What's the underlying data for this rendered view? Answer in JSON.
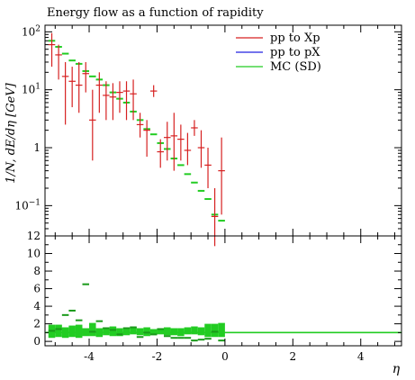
{
  "chart_data": {
    "type": "scatter",
    "title": "Energy flow as a function of rapidity",
    "xlabel": "η",
    "ylabel": "1/N, dE/dη [GeV]",
    "xlim": [
      -5.3,
      5.2
    ],
    "ylim": [
      0.03,
      130
    ],
    "yscale": "log",
    "y_ticks": [
      {
        "v": 100,
        "base": "10",
        "exp": "2"
      },
      {
        "v": 10,
        "base": "10",
        "exp": "1"
      },
      {
        "v": 1,
        "base": "1",
        "exp": ""
      },
      {
        "v": 0.1,
        "base": "10",
        "exp": "−1"
      }
    ],
    "x_ticks": [
      {
        "v": -4,
        "label": "-4"
      },
      {
        "v": -2,
        "label": "-2"
      },
      {
        "v": 0,
        "label": "0"
      },
      {
        "v": 2,
        "label": "2"
      },
      {
        "v": 4,
        "label": "4"
      }
    ],
    "legend_position": "top-right",
    "series": [
      {
        "name": "pp to Xp",
        "color": "#d62020",
        "marker": "errorbar",
        "x": [
          -5.1,
          -4.9,
          -4.7,
          -4.5,
          -4.3,
          -4.1,
          -3.9,
          -3.7,
          -3.5,
          -3.3,
          -3.1,
          -2.9,
          -2.7,
          -2.5,
          -2.3,
          -2.1,
          -1.9,
          -1.7,
          -1.5,
          -1.3,
          -1.1,
          -0.9,
          -0.7,
          -0.5,
          -0.3,
          -0.1
        ],
        "y": [
          60,
          40,
          17,
          14,
          12,
          19,
          3.0,
          12,
          8.0,
          7.5,
          9.0,
          9.5,
          8.5,
          2.5,
          2.0,
          9.5,
          0.85,
          1.5,
          1.6,
          1.4,
          0.9,
          2.2,
          1.0,
          0.5,
          0.065,
          0.4
        ],
        "ylow": [
          25,
          15,
          2.5,
          5,
          4,
          9,
          0.6,
          4,
          3,
          3,
          4,
          3,
          3,
          1.5,
          0.7,
          7.5,
          0.45,
          0.6,
          0.4,
          0.6,
          0.5,
          1.6,
          0.45,
          0.2,
          0.02,
          0.07
        ],
        "yhigh": [
          95,
          60,
          30,
          25,
          30,
          30,
          10,
          20,
          14,
          13,
          14,
          14,
          15,
          4,
          3,
          12,
          1.4,
          2.8,
          4.0,
          2.5,
          1.8,
          3.0,
          2.0,
          1.0,
          0.2,
          1.5
        ]
      },
      {
        "name": "pp to pX",
        "color": "#2020e0",
        "marker": "none",
        "x": [],
        "y": []
      },
      {
        "name": "MC (SD)",
        "color": "#22cc22",
        "marker": "hbar",
        "x": [
          -5.1,
          -4.9,
          -4.7,
          -4.5,
          -4.3,
          -4.1,
          -3.9,
          -3.7,
          -3.5,
          -3.3,
          -3.1,
          -2.9,
          -2.7,
          -2.5,
          -2.3,
          -2.1,
          -1.9,
          -1.7,
          -1.5,
          -1.3,
          -1.1,
          -0.9,
          -0.7,
          -0.5,
          -0.3,
          -0.1
        ],
        "y": [
          70,
          55,
          42,
          32,
          28,
          21,
          17,
          15,
          12,
          9.0,
          7.0,
          6.0,
          4.2,
          3.0,
          2.1,
          1.7,
          1.2,
          0.95,
          0.65,
          0.5,
          0.35,
          0.25,
          0.18,
          0.13,
          0.07,
          0.055
        ]
      }
    ],
    "ratio_panel": {
      "ylim": [
        -0.5,
        12
      ],
      "y_ticks": [
        0,
        2,
        4,
        6,
        8,
        10,
        12
      ],
      "reference_line": 1,
      "band_color": "#22cc22",
      "x": [
        -5.1,
        -4.9,
        -4.7,
        -4.5,
        -4.3,
        -4.1,
        -3.9,
        -3.7,
        -3.5,
        -3.3,
        -3.1,
        -2.9,
        -2.7,
        -2.5,
        -2.3,
        -2.1,
        -1.9,
        -1.7,
        -1.5,
        -1.3,
        -1.1,
        -0.9,
        -0.7,
        -0.5,
        -0.3,
        -0.1
      ],
      "band_low": [
        0.4,
        0.5,
        0.4,
        0.5,
        0.4,
        0.6,
        0.6,
        0.5,
        0.7,
        0.6,
        0.6,
        0.7,
        0.8,
        0.7,
        0.6,
        0.7,
        0.8,
        0.7,
        0.7,
        0.6,
        0.8,
        0.8,
        0.7,
        0.5,
        0.5,
        0.5
      ],
      "band_high": [
        1.9,
        1.9,
        1.6,
        1.8,
        1.9,
        1.5,
        2.1,
        1.5,
        1.5,
        1.7,
        1.5,
        1.4,
        1.6,
        1.5,
        1.6,
        1.4,
        1.5,
        1.6,
        1.5,
        1.5,
        1.6,
        1.7,
        1.6,
        2.0,
        2.0,
        2.1
      ],
      "ratio": [
        1.2,
        1.4,
        3.0,
        3.5,
        2.4,
        6.5,
        1.1,
        2.3,
        1.5,
        1.3,
        0.8,
        1.5,
        1.6,
        0.5,
        1.0,
        0.8,
        1.4,
        0.6,
        0.4,
        0.4,
        0.4,
        0.1,
        0.2,
        0.3,
        1.1,
        0.1
      ]
    }
  }
}
